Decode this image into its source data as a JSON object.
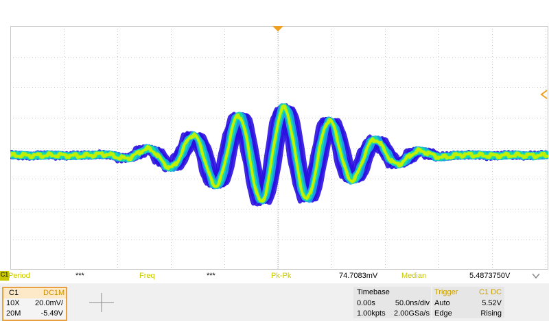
{
  "measurements": [
    {
      "label": "Period",
      "value": "***"
    },
    {
      "label": "Freq",
      "value": "***"
    },
    {
      "label": "Pk-Pk",
      "value": "74.7083mV"
    },
    {
      "label": "Median",
      "value": "5.4873750V"
    }
  ],
  "channel_marker": "C1",
  "channel": {
    "name": "C1",
    "coupling": "DC1M",
    "probe": "10X",
    "scale": "20.0mV/",
    "bandwidth": "20M",
    "offset": "-5.49V"
  },
  "timebase": {
    "title": "Timebase",
    "delay": "0.00s",
    "scale": "50.0ns/div",
    "points": "1.00kpts",
    "rate": "2.00GSa/s"
  },
  "trigger": {
    "title": "Trigger",
    "source": "C1 DC",
    "mode": "Auto",
    "level": "5.52V",
    "type": "Edge",
    "slope": "Rising"
  },
  "colors": {
    "grid": "#c8c8c8",
    "trace_outer": "#2a10e0",
    "trace_mid": "#1aa6e6",
    "trace_inner": "#18e0a0",
    "trace_core": "#c8f000",
    "trigger_marker": "#f0a020",
    "label": "#c8c800",
    "channel_border": "#e8a040"
  },
  "icons": {
    "collapse": "chevron-down-icon",
    "trigger_position": "triangle-down-icon",
    "level_marker": "chevron-left-icon"
  }
}
